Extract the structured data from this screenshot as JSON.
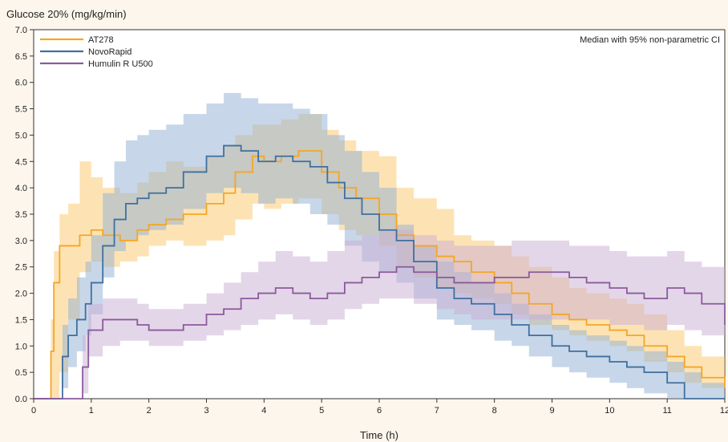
{
  "chart_data": {
    "type": "line",
    "title": "",
    "ylabel": "Glucose 20% (mg/kg/min)",
    "xlabel": "Time (h)",
    "annotation": "Median with 95% non-parametric CI",
    "xlim": [
      0,
      12
    ],
    "ylim": [
      0,
      7
    ],
    "xticks": [
      "0",
      "1",
      "2",
      "3",
      "4",
      "5",
      "6",
      "7",
      "8",
      "9",
      "10",
      "11",
      "12"
    ],
    "yticks": [
      "0.0",
      "0.5",
      "1.0",
      "1.5",
      "2.0",
      "2.5",
      "3.0",
      "3.5",
      "4.0",
      "4.5",
      "5.0",
      "5.5",
      "6.0",
      "6.5",
      "7.0"
    ],
    "legend_position": "top-left",
    "grid": false,
    "series": [
      {
        "name": "AT278",
        "color": "#f5a623",
        "band_color": "#fbc86a",
        "x": [
          0,
          0.25,
          0.3,
          0.35,
          0.45,
          0.6,
          0.8,
          1.0,
          1.2,
          1.5,
          1.8,
          2.0,
          2.3,
          2.6,
          3.0,
          3.3,
          3.5,
          3.8,
          4.0,
          4.3,
          4.6,
          5.0,
          5.3,
          5.6,
          6.0,
          6.3,
          6.6,
          7.0,
          7.3,
          7.6,
          8.0,
          8.3,
          8.6,
          9.0,
          9.3,
          9.6,
          10.0,
          10.3,
          10.6,
          11.0,
          11.3,
          11.6,
          12.0
        ],
        "y": [
          0,
          0.0,
          0.9,
          2.2,
          2.9,
          2.9,
          3.1,
          3.2,
          3.1,
          3.0,
          3.2,
          3.3,
          3.4,
          3.5,
          3.7,
          3.9,
          4.3,
          4.6,
          4.5,
          4.6,
          4.7,
          4.3,
          4.0,
          3.8,
          3.5,
          3.1,
          2.9,
          2.7,
          2.6,
          2.4,
          2.2,
          2.0,
          1.8,
          1.6,
          1.5,
          1.4,
          1.3,
          1.2,
          1.0,
          0.8,
          0.6,
          0.4,
          0.2
        ],
        "lower": [
          0,
          0.0,
          0.0,
          0.0,
          0.5,
          1.5,
          2.4,
          2.6,
          2.5,
          2.6,
          2.7,
          2.9,
          3.0,
          2.9,
          3.0,
          3.1,
          3.4,
          3.7,
          3.6,
          3.7,
          3.8,
          3.5,
          3.2,
          3.1,
          2.9,
          2.5,
          2.3,
          2.1,
          2.0,
          1.9,
          1.8,
          1.6,
          1.4,
          1.3,
          1.2,
          1.1,
          1.0,
          0.9,
          0.7,
          0.5,
          0.3,
          0.2,
          0.1
        ],
        "upper": [
          0,
          0.0,
          1.5,
          2.8,
          3.5,
          3.7,
          4.5,
          4.2,
          4.0,
          3.9,
          4.1,
          4.3,
          4.5,
          4.4,
          4.6,
          4.8,
          5.0,
          5.2,
          5.2,
          5.3,
          5.4,
          5.1,
          4.9,
          4.7,
          4.6,
          4.0,
          3.8,
          3.6,
          3.1,
          3.0,
          2.9,
          2.7,
          2.5,
          2.3,
          2.1,
          2.0,
          1.9,
          1.8,
          1.6,
          1.3,
          1.0,
          0.8,
          0.5
        ]
      },
      {
        "name": "NovoRapid",
        "color": "#3f6f9f",
        "band_color": "#8fb0d3",
        "x": [
          0,
          0.4,
          0.5,
          0.6,
          0.75,
          0.9,
          1.0,
          1.2,
          1.4,
          1.6,
          1.8,
          2.0,
          2.3,
          2.6,
          3.0,
          3.3,
          3.6,
          3.9,
          4.2,
          4.5,
          4.8,
          5.1,
          5.4,
          5.7,
          6.0,
          6.3,
          6.6,
          7.0,
          7.3,
          7.6,
          8.0,
          8.3,
          8.6,
          9.0,
          9.3,
          9.6,
          10.0,
          10.3,
          10.6,
          11.0,
          11.3,
          11.6,
          12.0
        ],
        "y": [
          0,
          0.0,
          0.8,
          1.2,
          1.5,
          1.8,
          2.2,
          2.9,
          3.4,
          3.7,
          3.8,
          3.9,
          4.0,
          4.3,
          4.6,
          4.8,
          4.7,
          4.5,
          4.6,
          4.5,
          4.4,
          4.1,
          3.8,
          3.5,
          3.2,
          3.0,
          2.6,
          2.1,
          1.9,
          1.8,
          1.6,
          1.4,
          1.2,
          1.0,
          0.9,
          0.8,
          0.7,
          0.6,
          0.5,
          0.3,
          0.0,
          0.0,
          0.0
        ],
        "lower": [
          0,
          0.0,
          0.2,
          0.6,
          0.9,
          1.2,
          1.6,
          2.3,
          2.8,
          3.0,
          3.1,
          3.2,
          3.3,
          3.6,
          3.9,
          4.0,
          3.9,
          3.7,
          3.8,
          3.7,
          3.5,
          3.3,
          2.9,
          2.6,
          2.4,
          2.2,
          1.9,
          1.5,
          1.4,
          1.3,
          1.1,
          1.0,
          0.8,
          0.6,
          0.5,
          0.4,
          0.3,
          0.2,
          0.1,
          0.0,
          0.0,
          0.0,
          0.0
        ],
        "upper": [
          0,
          0.0,
          1.4,
          1.9,
          2.3,
          2.6,
          3.1,
          3.9,
          4.5,
          4.9,
          5.0,
          5.1,
          5.2,
          5.4,
          5.6,
          5.8,
          5.7,
          5.6,
          5.6,
          5.5,
          5.4,
          5.0,
          4.7,
          4.3,
          4.0,
          3.3,
          2.9,
          2.6,
          2.4,
          2.2,
          2.0,
          1.8,
          1.6,
          1.4,
          1.3,
          1.2,
          1.1,
          1.0,
          0.9,
          0.7,
          0.5,
          0.3,
          0.1
        ]
      },
      {
        "name": "Humulin R U500",
        "color": "#8a5a9c",
        "band_color": "#c9aed4",
        "x": [
          0,
          0.75,
          0.85,
          0.95,
          1.2,
          1.5,
          1.8,
          2.0,
          2.3,
          2.6,
          3.0,
          3.3,
          3.6,
          3.9,
          4.2,
          4.5,
          4.8,
          5.1,
          5.4,
          5.7,
          6.0,
          6.3,
          6.6,
          7.0,
          7.3,
          7.6,
          8.0,
          8.3,
          8.6,
          9.0,
          9.3,
          9.6,
          10.0,
          10.3,
          10.6,
          11.0,
          11.3,
          11.6,
          12.0
        ],
        "y": [
          0,
          0.0,
          0.6,
          1.3,
          1.5,
          1.5,
          1.4,
          1.3,
          1.3,
          1.4,
          1.6,
          1.7,
          1.9,
          2.0,
          2.1,
          2.0,
          1.9,
          2.0,
          2.2,
          2.3,
          2.4,
          2.5,
          2.4,
          2.3,
          2.2,
          2.2,
          2.3,
          2.3,
          2.4,
          2.4,
          2.3,
          2.2,
          2.1,
          2.0,
          1.9,
          2.1,
          2.0,
          1.8,
          1.4
        ],
        "lower": [
          0,
          0.0,
          0.1,
          0.8,
          1.0,
          1.1,
          1.1,
          1.0,
          1.0,
          1.1,
          1.2,
          1.3,
          1.4,
          1.5,
          1.6,
          1.5,
          1.4,
          1.5,
          1.7,
          1.8,
          1.9,
          1.9,
          1.8,
          1.7,
          1.6,
          1.5,
          1.5,
          1.5,
          1.5,
          1.5,
          1.5,
          1.5,
          1.4,
          1.4,
          1.3,
          1.4,
          1.3,
          1.2,
          1.0
        ],
        "upper": [
          0,
          0.0,
          1.2,
          1.8,
          1.9,
          1.9,
          1.8,
          1.7,
          1.7,
          1.8,
          2.0,
          2.2,
          2.4,
          2.6,
          2.8,
          2.7,
          2.6,
          2.8,
          3.0,
          3.1,
          3.2,
          3.2,
          3.1,
          3.0,
          2.9,
          2.9,
          2.9,
          3.0,
          3.0,
          3.0,
          2.9,
          2.9,
          2.8,
          2.7,
          2.7,
          2.8,
          2.6,
          2.5,
          2.0
        ]
      }
    ]
  }
}
